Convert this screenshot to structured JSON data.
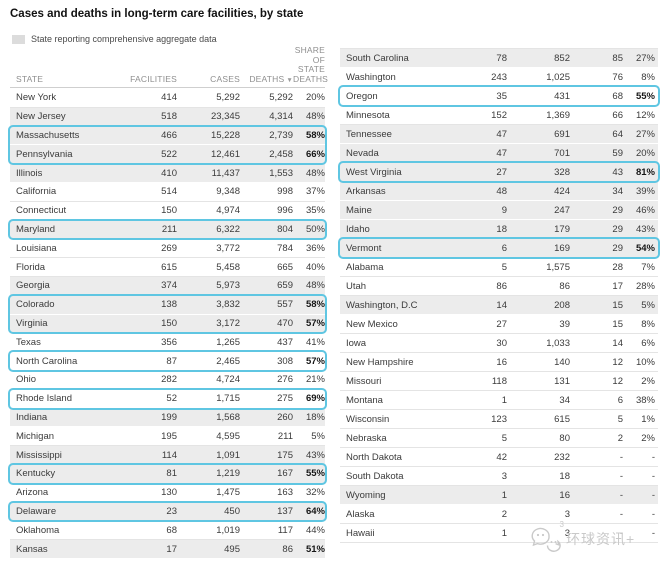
{
  "chart_data": {
    "type": "table",
    "title": "Cases and deaths in long-term care facilities, by state",
    "legend_label": "State reporting comprehensive aggregate data",
    "columns": {
      "state": "STATE",
      "facilities": "FACILITIES",
      "cases": "CASES",
      "deaths": "DEATHS",
      "sort_indicator": "▼",
      "share_lines": [
        "SHARE",
        "OF",
        "STATE",
        "DEATHS"
      ]
    },
    "left_rows": [
      {
        "state": "New York",
        "facilities": "414",
        "cases": "5,292",
        "deaths": "5,292",
        "share": "20%",
        "shaded": false,
        "box": "none",
        "bold_share": false
      },
      {
        "state": "New Jersey",
        "facilities": "518",
        "cases": "23,345",
        "deaths": "4,314",
        "share": "48%",
        "shaded": true,
        "box": "none",
        "bold_share": false
      },
      {
        "state": "Massachusetts",
        "facilities": "466",
        "cases": "15,228",
        "deaths": "2,739",
        "share": "58%",
        "shaded": true,
        "box": "start",
        "bold_share": true
      },
      {
        "state": "Pennsylvania",
        "facilities": "522",
        "cases": "12,461",
        "deaths": "2,458",
        "share": "66%",
        "shaded": true,
        "box": "end",
        "bold_share": true
      },
      {
        "state": "Illinois",
        "facilities": "410",
        "cases": "11,437",
        "deaths": "1,553",
        "share": "48%",
        "shaded": true,
        "box": "none",
        "bold_share": false
      },
      {
        "state": "California",
        "facilities": "514",
        "cases": "9,348",
        "deaths": "998",
        "share": "37%",
        "shaded": false,
        "box": "none",
        "bold_share": false
      },
      {
        "state": "Connecticut",
        "facilities": "150",
        "cases": "4,974",
        "deaths": "996",
        "share": "35%",
        "shaded": false,
        "box": "none",
        "bold_share": false
      },
      {
        "state": "Maryland",
        "facilities": "211",
        "cases": "6,322",
        "deaths": "804",
        "share": "50%",
        "shaded": true,
        "box": "single",
        "bold_share": false
      },
      {
        "state": "Louisiana",
        "facilities": "269",
        "cases": "3,772",
        "deaths": "784",
        "share": "36%",
        "shaded": false,
        "box": "none",
        "bold_share": false
      },
      {
        "state": "Florida",
        "facilities": "615",
        "cases": "5,458",
        "deaths": "665",
        "share": "40%",
        "shaded": false,
        "box": "none",
        "bold_share": false
      },
      {
        "state": "Georgia",
        "facilities": "374",
        "cases": "5,973",
        "deaths": "659",
        "share": "48%",
        "shaded": true,
        "box": "none",
        "bold_share": false
      },
      {
        "state": "Colorado",
        "facilities": "138",
        "cases": "3,832",
        "deaths": "557",
        "share": "58%",
        "shaded": true,
        "box": "start",
        "bold_share": true
      },
      {
        "state": "Virginia",
        "facilities": "150",
        "cases": "3,172",
        "deaths": "470",
        "share": "57%",
        "shaded": true,
        "box": "end",
        "bold_share": true
      },
      {
        "state": "Texas",
        "facilities": "356",
        "cases": "1,265",
        "deaths": "437",
        "share": "41%",
        "shaded": false,
        "box": "none",
        "bold_share": false
      },
      {
        "state": "North Carolina",
        "facilities": "87",
        "cases": "2,465",
        "deaths": "308",
        "share": "57%",
        "shaded": false,
        "box": "single",
        "bold_share": true
      },
      {
        "state": "Ohio",
        "facilities": "282",
        "cases": "4,724",
        "deaths": "276",
        "share": "21%",
        "shaded": false,
        "box": "none",
        "bold_share": false
      },
      {
        "state": "Rhode Island",
        "facilities": "52",
        "cases": "1,715",
        "deaths": "275",
        "share": "69%",
        "shaded": false,
        "box": "single",
        "bold_share": true
      },
      {
        "state": "Indiana",
        "facilities": "199",
        "cases": "1,568",
        "deaths": "260",
        "share": "18%",
        "shaded": true,
        "box": "none",
        "bold_share": false
      },
      {
        "state": "Michigan",
        "facilities": "195",
        "cases": "4,595",
        "deaths": "211",
        "share": "5%",
        "shaded": false,
        "box": "none",
        "bold_share": false
      },
      {
        "state": "Mississippi",
        "facilities": "114",
        "cases": "1,091",
        "deaths": "175",
        "share": "43%",
        "shaded": true,
        "box": "none",
        "bold_share": false
      },
      {
        "state": "Kentucky",
        "facilities": "81",
        "cases": "1,219",
        "deaths": "167",
        "share": "55%",
        "shaded": true,
        "box": "single",
        "bold_share": true
      },
      {
        "state": "Arizona",
        "facilities": "130",
        "cases": "1,475",
        "deaths": "163",
        "share": "32%",
        "shaded": false,
        "box": "none",
        "bold_share": false
      },
      {
        "state": "Delaware",
        "facilities": "23",
        "cases": "450",
        "deaths": "137",
        "share": "64%",
        "shaded": true,
        "box": "single",
        "bold_share": true
      },
      {
        "state": "Oklahoma",
        "facilities": "68",
        "cases": "1,019",
        "deaths": "117",
        "share": "44%",
        "shaded": false,
        "box": "none",
        "bold_share": false
      },
      {
        "state": "Kansas",
        "facilities": "17",
        "cases": "495",
        "deaths": "86",
        "share": "51%",
        "shaded": true,
        "box": "none",
        "bold_share": true
      }
    ],
    "right_rows": [
      {
        "state": "South Carolina",
        "facilities": "78",
        "cases": "852",
        "deaths": "85",
        "share": "27%",
        "shaded": true,
        "box": "none",
        "bold_share": false
      },
      {
        "state": "Washington",
        "facilities": "243",
        "cases": "1,025",
        "deaths": "76",
        "share": "8%",
        "shaded": false,
        "box": "none",
        "bold_share": false
      },
      {
        "state": "Oregon",
        "facilities": "35",
        "cases": "431",
        "deaths": "68",
        "share": "55%",
        "shaded": false,
        "box": "single",
        "bold_share": true
      },
      {
        "state": "Minnesota",
        "facilities": "152",
        "cases": "1,369",
        "deaths": "66",
        "share": "12%",
        "shaded": false,
        "box": "none",
        "bold_share": false
      },
      {
        "state": "Tennessee",
        "facilities": "47",
        "cases": "691",
        "deaths": "64",
        "share": "27%",
        "shaded": true,
        "box": "none",
        "bold_share": false
      },
      {
        "state": "Nevada",
        "facilities": "47",
        "cases": "701",
        "deaths": "59",
        "share": "20%",
        "shaded": true,
        "box": "none",
        "bold_share": false
      },
      {
        "state": "West Virginia",
        "facilities": "27",
        "cases": "328",
        "deaths": "43",
        "share": "81%",
        "shaded": true,
        "box": "single",
        "bold_share": true
      },
      {
        "state": "Arkansas",
        "facilities": "48",
        "cases": "424",
        "deaths": "34",
        "share": "39%",
        "shaded": true,
        "box": "none",
        "bold_share": false
      },
      {
        "state": "Maine",
        "facilities": "9",
        "cases": "247",
        "deaths": "29",
        "share": "46%",
        "shaded": true,
        "box": "none",
        "bold_share": false
      },
      {
        "state": "Idaho",
        "facilities": "18",
        "cases": "179",
        "deaths": "29",
        "share": "43%",
        "shaded": true,
        "box": "none",
        "bold_share": false
      },
      {
        "state": "Vermont",
        "facilities": "6",
        "cases": "169",
        "deaths": "29",
        "share": "54%",
        "shaded": true,
        "box": "single",
        "bold_share": true
      },
      {
        "state": "Alabama",
        "facilities": "5",
        "cases": "1,575",
        "deaths": "28",
        "share": "7%",
        "shaded": false,
        "box": "none",
        "bold_share": false
      },
      {
        "state": "Utah",
        "facilities": "86",
        "cases": "86",
        "deaths": "17",
        "share": "28%",
        "shaded": false,
        "box": "none",
        "bold_share": false
      },
      {
        "state": "Washington, D.C",
        "facilities": "14",
        "cases": "208",
        "deaths": "15",
        "share": "5%",
        "shaded": true,
        "box": "none",
        "bold_share": false
      },
      {
        "state": "New Mexico",
        "facilities": "27",
        "cases": "39",
        "deaths": "15",
        "share": "8%",
        "shaded": false,
        "box": "none",
        "bold_share": false
      },
      {
        "state": "Iowa",
        "facilities": "30",
        "cases": "1,033",
        "deaths": "14",
        "share": "6%",
        "shaded": false,
        "box": "none",
        "bold_share": false
      },
      {
        "state": "New Hampshire",
        "facilities": "16",
        "cases": "140",
        "deaths": "12",
        "share": "10%",
        "shaded": false,
        "box": "none",
        "bold_share": false
      },
      {
        "state": "Missouri",
        "facilities": "118",
        "cases": "131",
        "deaths": "12",
        "share": "2%",
        "shaded": false,
        "box": "none",
        "bold_share": false
      },
      {
        "state": "Montana",
        "facilities": "1",
        "cases": "34",
        "deaths": "6",
        "share": "38%",
        "shaded": false,
        "box": "none",
        "bold_share": false
      },
      {
        "state": "Wisconsin",
        "facilities": "123",
        "cases": "615",
        "deaths": "5",
        "share": "1%",
        "shaded": false,
        "box": "none",
        "bold_share": false
      },
      {
        "state": "Nebraska",
        "facilities": "5",
        "cases": "80",
        "deaths": "2",
        "share": "2%",
        "shaded": false,
        "box": "none",
        "bold_share": false
      },
      {
        "state": "North Dakota",
        "facilities": "42",
        "cases": "232",
        "deaths": "-",
        "share": "-",
        "shaded": false,
        "box": "none",
        "bold_share": false
      },
      {
        "state": "South Dakota",
        "facilities": "3",
        "cases": "18",
        "deaths": "-",
        "share": "-",
        "shaded": false,
        "box": "none",
        "bold_share": false
      },
      {
        "state": "Wyoming",
        "facilities": "1",
        "cases": "16",
        "deaths": "-",
        "share": "-",
        "shaded": true,
        "box": "none",
        "bold_share": false
      },
      {
        "state": "Alaska",
        "facilities": "2",
        "cases": "3",
        "deaths": "-",
        "share": "-",
        "shaded": false,
        "box": "none",
        "bold_share": false
      },
      {
        "state": "Hawaii",
        "facilities": "1",
        "cases": "3",
        "deaths": "-",
        "share": "-",
        "shaded": false,
        "box": "none",
        "bold_share": false
      }
    ]
  },
  "watermark": {
    "text": "环球资讯+",
    "superscript": "3"
  },
  "colors": {
    "highlight_border": "#5fc6e2",
    "shaded_row_bg": "#ececec",
    "legend_swatch": "#dcdcdc",
    "watermark": "#c9c9c9"
  }
}
